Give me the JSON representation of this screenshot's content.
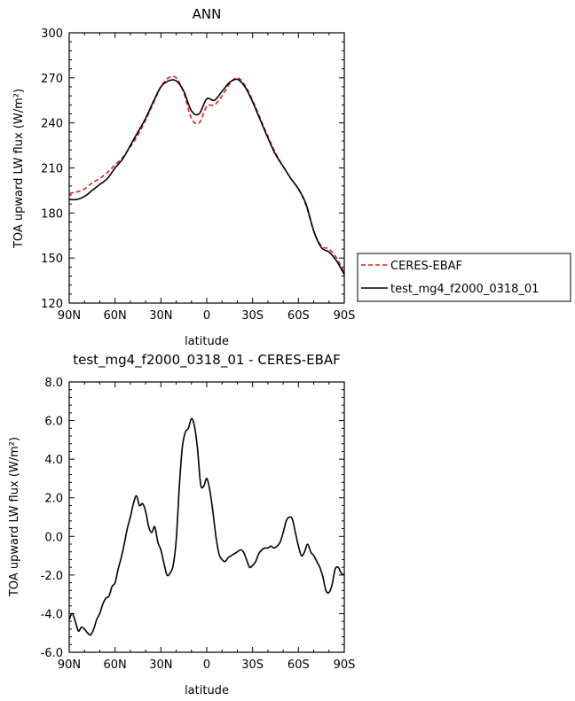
{
  "chart_data": [
    {
      "type": "line",
      "title": "ANN",
      "xlabel": "latitude",
      "ylabel": "TOA upward LW flux (W/m²)",
      "xlim": [
        90,
        -90
      ],
      "ylim": [
        120,
        300
      ],
      "xticks": [
        90,
        60,
        30,
        0,
        -30,
        -60,
        -90
      ],
      "xtick_labels": [
        "90N",
        "60N",
        "30N",
        "0",
        "30S",
        "60S",
        "90S"
      ],
      "yticks": [
        120,
        150,
        180,
        210,
        240,
        270,
        300
      ],
      "ytick_labels": [
        "120",
        "150",
        "180",
        "210",
        "240",
        "270",
        "300"
      ],
      "grid": false,
      "legend": {
        "position": "right",
        "entries": [
          "CERES-EBAF",
          "test_mg4_f2000_0318_01"
        ]
      },
      "series": [
        {
          "name": "CERES-EBAF",
          "color": "#e0201b",
          "style": "dashed",
          "x": [
            90,
            85,
            80,
            75,
            70,
            65,
            60,
            55,
            50,
            45,
            40,
            35,
            30,
            25,
            20,
            15,
            10,
            5,
            0,
            -5,
            -10,
            -15,
            -20,
            -25,
            -30,
            -35,
            -40,
            -45,
            -50,
            -55,
            -60,
            -65,
            -70,
            -75,
            -80,
            -85,
            -90
          ],
          "y": [
            193,
            194,
            196,
            200,
            203,
            207,
            212,
            217,
            224,
            232,
            242,
            253,
            264,
            270,
            270,
            260,
            243,
            240,
            251,
            252,
            258,
            266,
            270,
            265,
            255,
            243,
            231,
            220,
            211,
            203,
            196,
            185,
            168,
            158,
            156,
            150,
            140
          ]
        },
        {
          "name": "test_mg4_f2000_0318_01",
          "color": "#000000",
          "style": "solid",
          "x": [
            90,
            85,
            80,
            75,
            70,
            65,
            60,
            55,
            50,
            45,
            40,
            35,
            30,
            25,
            20,
            15,
            10,
            5,
            0,
            -5,
            -10,
            -15,
            -20,
            -25,
            -30,
            -35,
            -40,
            -45,
            -50,
            -55,
            -60,
            -65,
            -70,
            -75,
            -80,
            -85,
            -90
          ],
          "y": [
            189,
            189,
            191,
            195,
            199,
            203,
            210,
            216,
            225,
            234,
            243,
            254,
            264,
            268,
            268,
            261,
            248,
            246,
            256,
            255,
            261,
            267,
            269,
            264,
            254,
            242,
            230,
            219,
            211,
            203,
            196,
            186,
            168,
            157,
            154,
            148,
            139
          ]
        }
      ]
    },
    {
      "type": "line",
      "title": "test_mg4_f2000_0318_01 - CERES-EBAF",
      "xlabel": "latitude",
      "ylabel": "TOA upward LW flux (W/m²)",
      "xlim": [
        90,
        -90
      ],
      "ylim": [
        -6,
        8
      ],
      "xticks": [
        90,
        60,
        30,
        0,
        -30,
        -60,
        -90
      ],
      "xtick_labels": [
        "90N",
        "60N",
        "30N",
        "0",
        "30S",
        "60S",
        "90S"
      ],
      "yticks": [
        -6,
        -4,
        -2,
        0,
        2,
        4,
        6,
        8
      ],
      "ytick_labels": [
        "-6.0",
        "-4.0",
        "-2.0",
        "0.0",
        "2.0",
        "4.0",
        "6.0",
        "8.0"
      ],
      "grid": false,
      "series": [
        {
          "color": "#000000",
          "style": "solid",
          "x": [
            90,
            88,
            86,
            84,
            82,
            80,
            78,
            76,
            74,
            72,
            70,
            68,
            66,
            64,
            62,
            60,
            58,
            56,
            54,
            52,
            50,
            48,
            46,
            44,
            42,
            40,
            38,
            36,
            34,
            32,
            30,
            28,
            26,
            24,
            22,
            20,
            18,
            16,
            14,
            12,
            10,
            8,
            6,
            4,
            2,
            0,
            -2,
            -4,
            -6,
            -8,
            -10,
            -12,
            -14,
            -16,
            -18,
            -20,
            -22,
            -24,
            -26,
            -28,
            -30,
            -32,
            -34,
            -36,
            -38,
            -40,
            -42,
            -44,
            -46,
            -48,
            -50,
            -52,
            -54,
            -56,
            -58,
            -60,
            -62,
            -64,
            -66,
            -68,
            -70,
            -72,
            -74,
            -76,
            -78,
            -80,
            -82,
            -84,
            -86,
            -88,
            -90
          ],
          "y": [
            -4.3,
            -4.0,
            -4.4,
            -4.9,
            -4.7,
            -4.8,
            -5.0,
            -5.1,
            -4.8,
            -4.3,
            -4.0,
            -3.5,
            -3.2,
            -3.1,
            -2.6,
            -2.4,
            -1.7,
            -1.1,
            -0.4,
            0.4,
            1.0,
            1.7,
            2.1,
            1.6,
            1.7,
            1.3,
            0.5,
            0.2,
            0.5,
            -0.3,
            -0.7,
            -1.4,
            -2.0,
            -1.9,
            -1.5,
            -0.2,
            2.5,
            4.6,
            5.4,
            5.6,
            6.1,
            5.7,
            4.5,
            2.7,
            2.6,
            3.0,
            2.4,
            1.3,
            0.0,
            -0.9,
            -1.2,
            -1.3,
            -1.1,
            -1.0,
            -0.9,
            -0.8,
            -0.7,
            -0.8,
            -1.2,
            -1.6,
            -1.5,
            -1.3,
            -0.9,
            -0.7,
            -0.6,
            -0.6,
            -0.5,
            -0.6,
            -0.5,
            -0.3,
            0.2,
            0.8,
            1.0,
            0.9,
            0.2,
            -0.5,
            -1.0,
            -0.8,
            -0.4,
            -0.8,
            -1.0,
            -1.3,
            -1.6,
            -2.1,
            -2.8,
            -2.9,
            -2.5,
            -1.7,
            -1.6,
            -1.9,
            -2.0
          ]
        }
      ]
    }
  ]
}
